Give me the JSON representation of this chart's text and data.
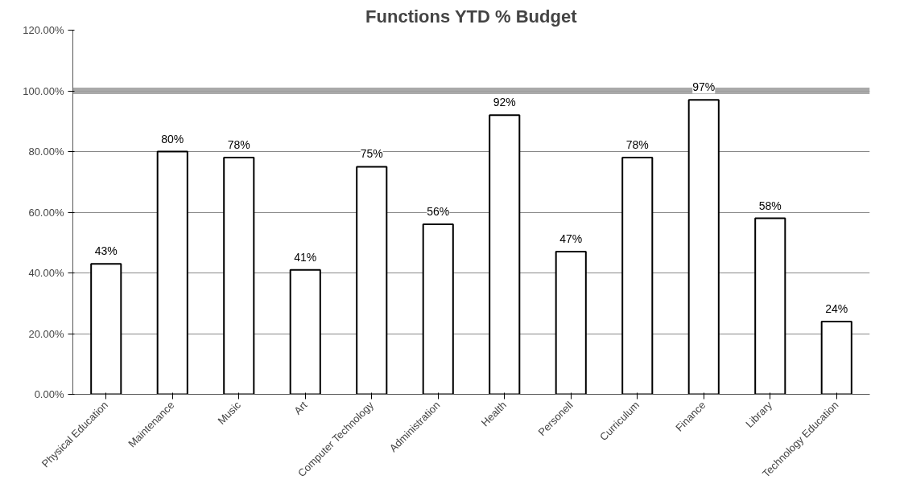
{
  "chart_data": {
    "type": "bar",
    "title": "Functions YTD % Budget",
    "categories": [
      "Physical Education",
      "Maintenance",
      "Music",
      "Art",
      "Computer Technology",
      "Administration",
      "Health",
      "Personell",
      "Curriculum",
      "Finance",
      "Library",
      "Technology Education"
    ],
    "values": [
      43,
      80,
      78,
      41,
      75,
      56,
      92,
      47,
      78,
      97,
      58,
      24
    ],
    "value_labels": [
      "43%",
      "80%",
      "78%",
      "41%",
      "75%",
      "56%",
      "92%",
      "47%",
      "78%",
      "97%",
      "58%",
      "24%"
    ],
    "color": "#ffffff",
    "ylim": [
      0,
      120
    ],
    "yticks": [
      {
        "value": 0,
        "label": "0.00%"
      },
      {
        "value": 20,
        "label": "20.00%"
      },
      {
        "value": 40,
        "label": "40.00%"
      },
      {
        "value": 60,
        "label": "60.00%"
      },
      {
        "value": 80,
        "label": "80.00%"
      },
      {
        "value": 100,
        "label": "100.00%"
      },
      {
        "value": 120,
        "label": "120.00%"
      }
    ],
    "grid": "y",
    "ref_lines": [
      {
        "axis": "y",
        "value": 100,
        "color": "#a0a0a0"
      }
    ]
  }
}
